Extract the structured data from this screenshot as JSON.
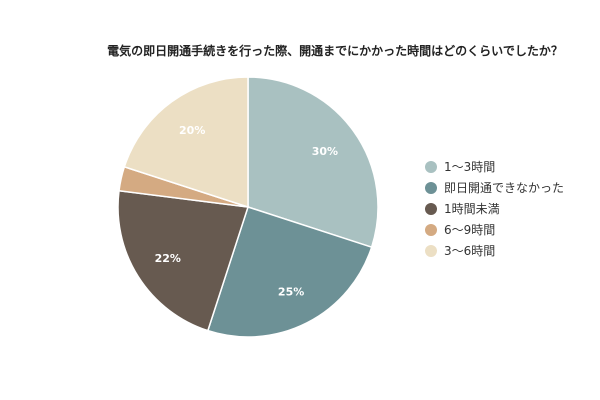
{
  "chart_data": {
    "type": "pie",
    "title": "電気の即日開通手続きを行った際、開通までにかかった時間はどのくらいでしたか？",
    "legend_position": "right",
    "slices": [
      {
        "label": "1〜3時間",
        "value": 30,
        "display": "30%",
        "color": "#a9c1c1"
      },
      {
        "label": "即日開通できなかった",
        "value": 25,
        "display": "25%",
        "color": "#6d9196"
      },
      {
        "label": "1時間未満",
        "value": 22,
        "display": "22%",
        "color": "#675a50"
      },
      {
        "label": "6〜9時間",
        "value": 3,
        "display": "",
        "color": "#d4aa82"
      },
      {
        "label": "3〜6時間",
        "value": 20,
        "display": "20%",
        "color": "#ecdfc4"
      }
    ]
  }
}
